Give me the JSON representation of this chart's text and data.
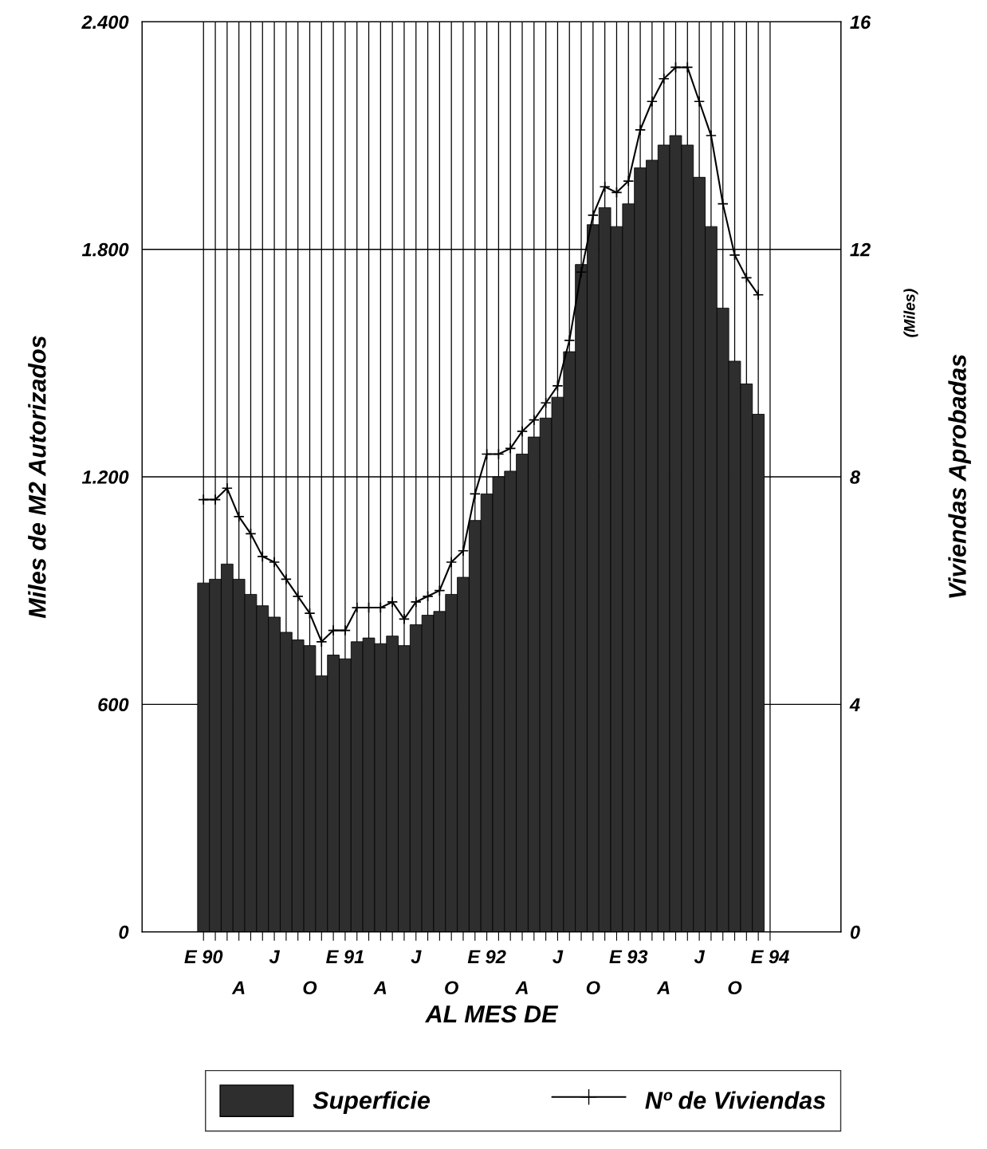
{
  "chart_data": {
    "type": "bar",
    "categories": [
      "E 90",
      null,
      null,
      "A",
      null,
      null,
      "J",
      null,
      null,
      "O",
      null,
      null,
      "E 91",
      null,
      null,
      "A",
      null,
      null,
      "J",
      null,
      null,
      "O",
      null,
      null,
      "E 92",
      null,
      null,
      "A",
      null,
      null,
      "J",
      null,
      null,
      "O",
      null,
      null,
      "E 93",
      null,
      null,
      "A",
      null,
      null,
      "J",
      null,
      null,
      "O",
      null,
      null,
      "E 94"
    ],
    "series": [
      {
        "name": "Superficie",
        "color": "#2e2e2e",
        "values": [
          920,
          930,
          970,
          930,
          890,
          860,
          830,
          790,
          770,
          755,
          675,
          730,
          720,
          765,
          775,
          760,
          780,
          755,
          810,
          835,
          845,
          890,
          935,
          1085,
          1155,
          1200,
          1215,
          1260,
          1305,
          1355,
          1410,
          1530,
          1760,
          1865,
          1910,
          1860,
          1920,
          2015,
          2035,
          2075,
          2100,
          2075,
          1990,
          1860,
          1645,
          1505,
          1445,
          1365,
          null
        ]
      },
      {
        "name": "Nº de Viviendas",
        "type": "line",
        "axis": "y2",
        "color": "#000000",
        "marker": "cross",
        "line_style": "solid",
        "values": [
          7.6,
          7.6,
          7.8,
          7.3,
          7.0,
          6.6,
          6.5,
          6.2,
          5.9,
          5.6,
          5.1,
          5.3,
          5.3,
          5.7,
          5.7,
          5.7,
          5.8,
          5.5,
          5.8,
          5.9,
          6.0,
          6.5,
          6.7,
          7.7,
          8.4,
          8.4,
          8.5,
          8.8,
          9.0,
          9.3,
          9.6,
          10.4,
          11.6,
          12.6,
          13.1,
          13.0,
          13.2,
          14.1,
          14.6,
          15.0,
          15.2,
          15.2,
          14.6,
          14.0,
          12.8,
          11.9,
          11.5,
          11.2,
          null
        ]
      }
    ],
    "ylabel": "Miles de M2 Autorizados",
    "y2label": "Viviendas Aprobadas",
    "xlabel": "AL MES DE",
    "annotations": [
      "(Miles)"
    ],
    "ylim": [
      0,
      2400
    ],
    "yticks": [
      0,
      600,
      {
        "value": 1200,
        "label": "1.200"
      },
      {
        "value": 1800,
        "label": "1.800"
      },
      {
        "value": 2400,
        "label": "2.400"
      }
    ],
    "y2lim": [
      0,
      16
    ],
    "y2ticks": [
      0,
      4,
      8,
      12,
      16
    ],
    "grid": true,
    "legend": "bottom"
  }
}
